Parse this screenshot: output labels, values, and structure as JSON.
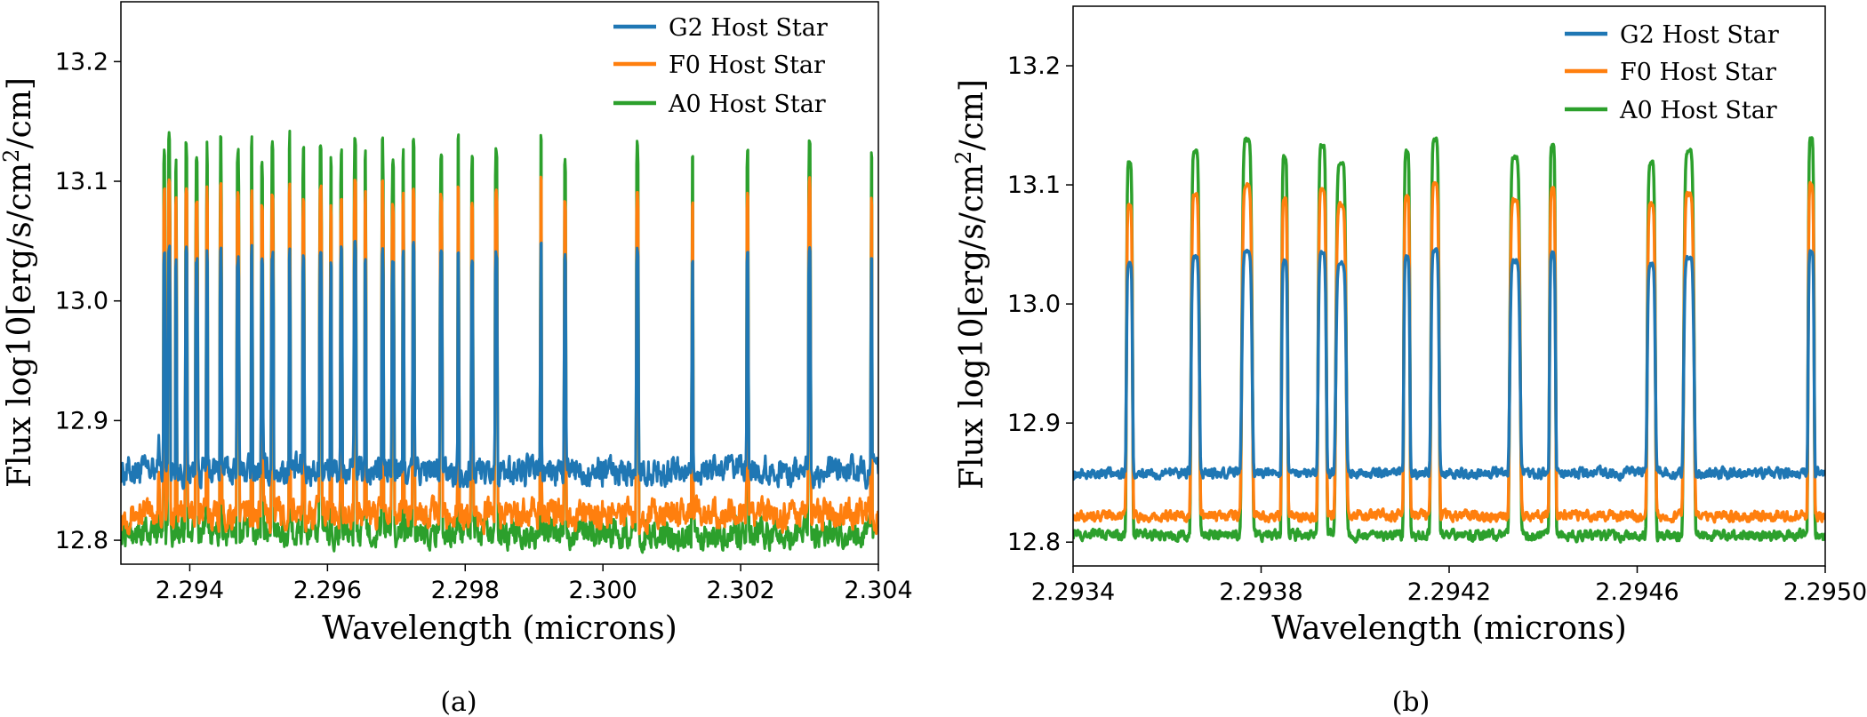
{
  "chart_data": [
    {
      "type": "line",
      "panel": "a",
      "caption": "(a)",
      "xlabel": "Wavelength (microns)",
      "ylabel_main": "Flux log10[erg/s/cm",
      "ylabel_sup": "2",
      "ylabel_tail": "/cm]",
      "xlim": [
        2.293,
        2.304
      ],
      "ylim": [
        12.78,
        13.25
      ],
      "xticks": [
        2.294,
        2.296,
        2.298,
        2.3,
        2.302,
        2.304
      ],
      "xtick_labels": [
        "2.294",
        "2.296",
        "2.298",
        "2.300",
        "2.302",
        "2.304"
      ],
      "yticks": [
        12.8,
        12.9,
        13.0,
        13.1,
        13.2
      ],
      "ytick_labels": [
        "12.8",
        "12.9",
        "13.0",
        "13.1",
        "13.2"
      ],
      "legend_position": "top-right",
      "baseline_start": 2.2936,
      "lines": [
        2.29355,
        2.29363,
        2.2937,
        2.2938,
        2.29395,
        2.2941,
        2.29425,
        2.29445,
        2.2947,
        2.2949,
        2.29505,
        2.2952,
        2.29545,
        2.29565,
        2.2959,
        2.29605,
        2.2962,
        2.2964,
        2.29655,
        2.2968,
        2.29695,
        2.2971,
        2.29725,
        2.29765,
        2.2979,
        2.2981,
        2.29845,
        2.2991,
        2.29945,
        2.3005,
        2.3013,
        2.3021,
        2.303,
        2.3039
      ],
      "series": [
        {
          "name": "G2 Host Star",
          "color": "#1f77b4",
          "peak": 13.045,
          "base": 12.858
        },
        {
          "name": "F0 Host Star",
          "color": "#ff7f0e",
          "peak": 13.1,
          "base": 12.822
        },
        {
          "name": "A0 Host Star",
          "color": "#2ca02c",
          "peak": 13.138,
          "base": 12.806
        }
      ]
    },
    {
      "type": "line",
      "panel": "b",
      "caption": "(b)",
      "xlabel": "Wavelength (microns)",
      "ylabel_main": "Flux log10[erg/s/cm",
      "ylabel_sup": "2",
      "ylabel_tail": "/cm]",
      "xlim": [
        2.2934,
        2.295
      ],
      "ylim": [
        12.78,
        13.25
      ],
      "xticks": [
        2.2934,
        2.2938,
        2.2942,
        2.2946,
        2.295
      ],
      "xtick_labels": [
        "2.2934",
        "2.2938",
        "2.2942",
        "2.2946",
        "2.2950"
      ],
      "yticks": [
        12.8,
        12.9,
        13.0,
        13.1,
        13.2
      ],
      "ytick_labels": [
        "12.8",
        "12.9",
        "13.0",
        "13.1",
        "13.2"
      ],
      "legend_position": "top-right",
      "lines": [
        2.29352,
        2.29366,
        2.29377,
        2.29385,
        2.29393,
        2.29397,
        2.29411,
        2.29417,
        2.29434,
        2.29442,
        2.29463,
        2.29471,
        2.29497
      ],
      "series": [
        {
          "name": "G2 Host Star",
          "color": "#1f77b4",
          "peak": 13.045,
          "base": 12.858
        },
        {
          "name": "F0 Host Star",
          "color": "#ff7f0e",
          "peak": 13.1,
          "base": 12.822
        },
        {
          "name": "A0 Host Star",
          "color": "#2ca02c",
          "peak": 13.138,
          "base": 12.806
        }
      ]
    }
  ]
}
